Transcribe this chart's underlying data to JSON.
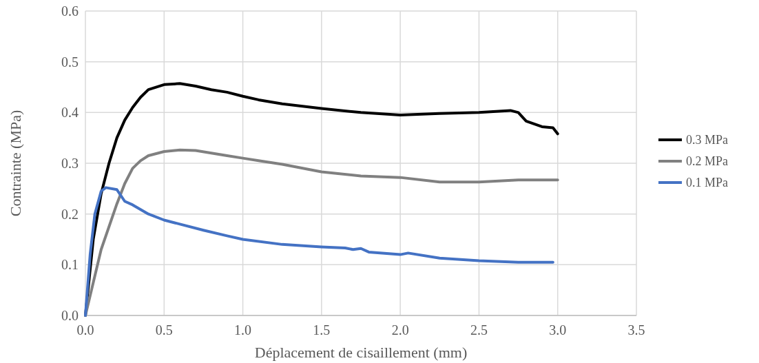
{
  "chart_data": {
    "type": "line",
    "xlabel": "Déplacement de cisaillement (mm)",
    "ylabel": "Contrainte (MPa)",
    "xlim": [
      0,
      3.5
    ],
    "xticks": [
      {
        "value": 0,
        "label": "0.0"
      },
      0.5,
      {
        "value": 1,
        "label": "1.0"
      },
      1.5,
      {
        "value": 2,
        "label": "2.0"
      },
      2.5,
      {
        "value": 3,
        "label": "3.0"
      },
      3.5
    ],
    "ylim": [
      0,
      0.6
    ],
    "yticks": [
      {
        "value": 0,
        "label": "0.0"
      },
      0.1,
      0.2,
      0.3,
      0.4,
      0.5,
      0.6
    ],
    "grid": true,
    "legend": "right",
    "marker": "none",
    "line_style": "solid",
    "series": [
      {
        "name": "0.3 MPa",
        "color": "#000000",
        "x": [
          0,
          0.05,
          0.1,
          0.15,
          0.2,
          0.25,
          0.3,
          0.35,
          0.4,
          0.5,
          0.6,
          0.7,
          0.8,
          0.9,
          1.0,
          1.1,
          1.25,
          1.5,
          1.75,
          2.0,
          2.25,
          2.5,
          2.7,
          2.75,
          2.8,
          2.9,
          2.97,
          3.0
        ],
        "values": [
          0,
          0.15,
          0.24,
          0.3,
          0.35,
          0.385,
          0.41,
          0.43,
          0.445,
          0.455,
          0.457,
          0.452,
          0.445,
          0.44,
          0.432,
          0.425,
          0.417,
          0.408,
          0.4,
          0.395,
          0.398,
          0.4,
          0.404,
          0.4,
          0.383,
          0.372,
          0.37,
          0.358
        ]
      },
      {
        "name": "0.2 MPa",
        "color": "#808080",
        "x": [
          0,
          0.1,
          0.2,
          0.25,
          0.3,
          0.35,
          0.4,
          0.5,
          0.6,
          0.7,
          0.8,
          0.9,
          1.0,
          1.1,
          1.25,
          1.5,
          1.75,
          2.0,
          2.25,
          2.5,
          2.75,
          3.0
        ],
        "values": [
          0,
          0.13,
          0.22,
          0.26,
          0.29,
          0.305,
          0.315,
          0.323,
          0.326,
          0.325,
          0.32,
          0.315,
          0.31,
          0.305,
          0.298,
          0.283,
          0.275,
          0.272,
          0.263,
          0.263,
          0.267,
          0.267
        ]
      },
      {
        "name": "0.1 MPa",
        "color": "#4472c4",
        "x": [
          0,
          0.03,
          0.06,
          0.1,
          0.13,
          0.2,
          0.25,
          0.3,
          0.4,
          0.5,
          0.6,
          0.75,
          0.9,
          1.0,
          1.25,
          1.5,
          1.65,
          1.7,
          1.75,
          1.8,
          2.0,
          2.05,
          2.25,
          2.5,
          2.75,
          2.97
        ],
        "values": [
          0,
          0.12,
          0.2,
          0.245,
          0.252,
          0.248,
          0.225,
          0.218,
          0.2,
          0.188,
          0.18,
          0.168,
          0.157,
          0.15,
          0.14,
          0.135,
          0.133,
          0.13,
          0.132,
          0.125,
          0.12,
          0.123,
          0.113,
          0.108,
          0.105,
          0.105
        ]
      }
    ]
  }
}
